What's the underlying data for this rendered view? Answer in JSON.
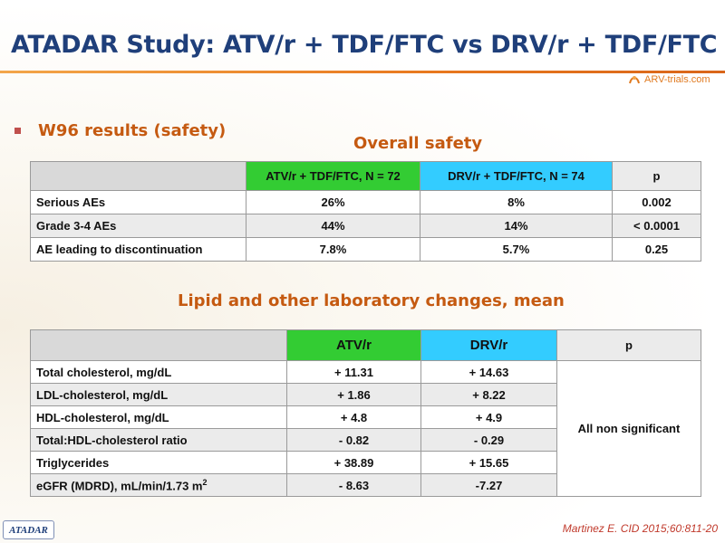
{
  "header": {
    "title": "ATADAR Study: ATV/r + TDF/FTC vs DRV/r + TDF/FTC",
    "logo_text": "ARV-trials.com",
    "logo_icon": "ribbon-icon"
  },
  "bullet": {
    "text": "W96 results (safety)"
  },
  "overall_safety": {
    "section_title": "Overall safety",
    "columns": [
      "",
      "ATV/r + TDF/FTC, N = 72",
      "DRV/r + TDF/FTC, N = 74",
      "p"
    ],
    "rows": [
      {
        "label": "Serious AEs",
        "atv": "26%",
        "drv": "8%",
        "p": "0.002"
      },
      {
        "label": "Grade 3-4 AEs",
        "atv": "44%",
        "drv": "14%",
        "p": "< 0.0001"
      },
      {
        "label": "AE leading to discontinuation",
        "atv": "7.8%",
        "drv": "5.7%",
        "p": "0.25"
      }
    ]
  },
  "lipid": {
    "section_title": "Lipid and other laboratory changes, mean",
    "columns": [
      "",
      "ATV/r",
      "DRV/r",
      "p"
    ],
    "rows": [
      {
        "label": "Total cholesterol, mg/dL",
        "atv": "+ 11.31",
        "drv": "+ 14.63"
      },
      {
        "label": "LDL-cholesterol, mg/dL",
        "atv": "+ 1.86",
        "drv": "+ 8.22"
      },
      {
        "label": "HDL-cholesterol, mg/dL",
        "atv": "+ 4.8",
        "drv": "+ 4.9"
      },
      {
        "label": "Total:HDL-cholesterol ratio",
        "atv": "- 0.82",
        "drv": "- 0.29"
      },
      {
        "label": "Triglycerides",
        "atv": "+ 38.89",
        "drv": "+ 15.65"
      },
      {
        "label": "eGFR (MDRD), mL/min/1.73 m",
        "label_sup": "2",
        "atv": "- 8.63",
        "drv": "-7.27"
      }
    ],
    "p_merged": "All non significant"
  },
  "footer": {
    "study_badge": "ATADAR",
    "citation": "Martinez E. CID 2015;60:811-20"
  },
  "colors": {
    "title": "#1f3f7a",
    "accent_orange": "#c55a11",
    "atv_header": "#33cc33",
    "drv_header": "#33ccff",
    "row_shade": "#ebebeb"
  }
}
